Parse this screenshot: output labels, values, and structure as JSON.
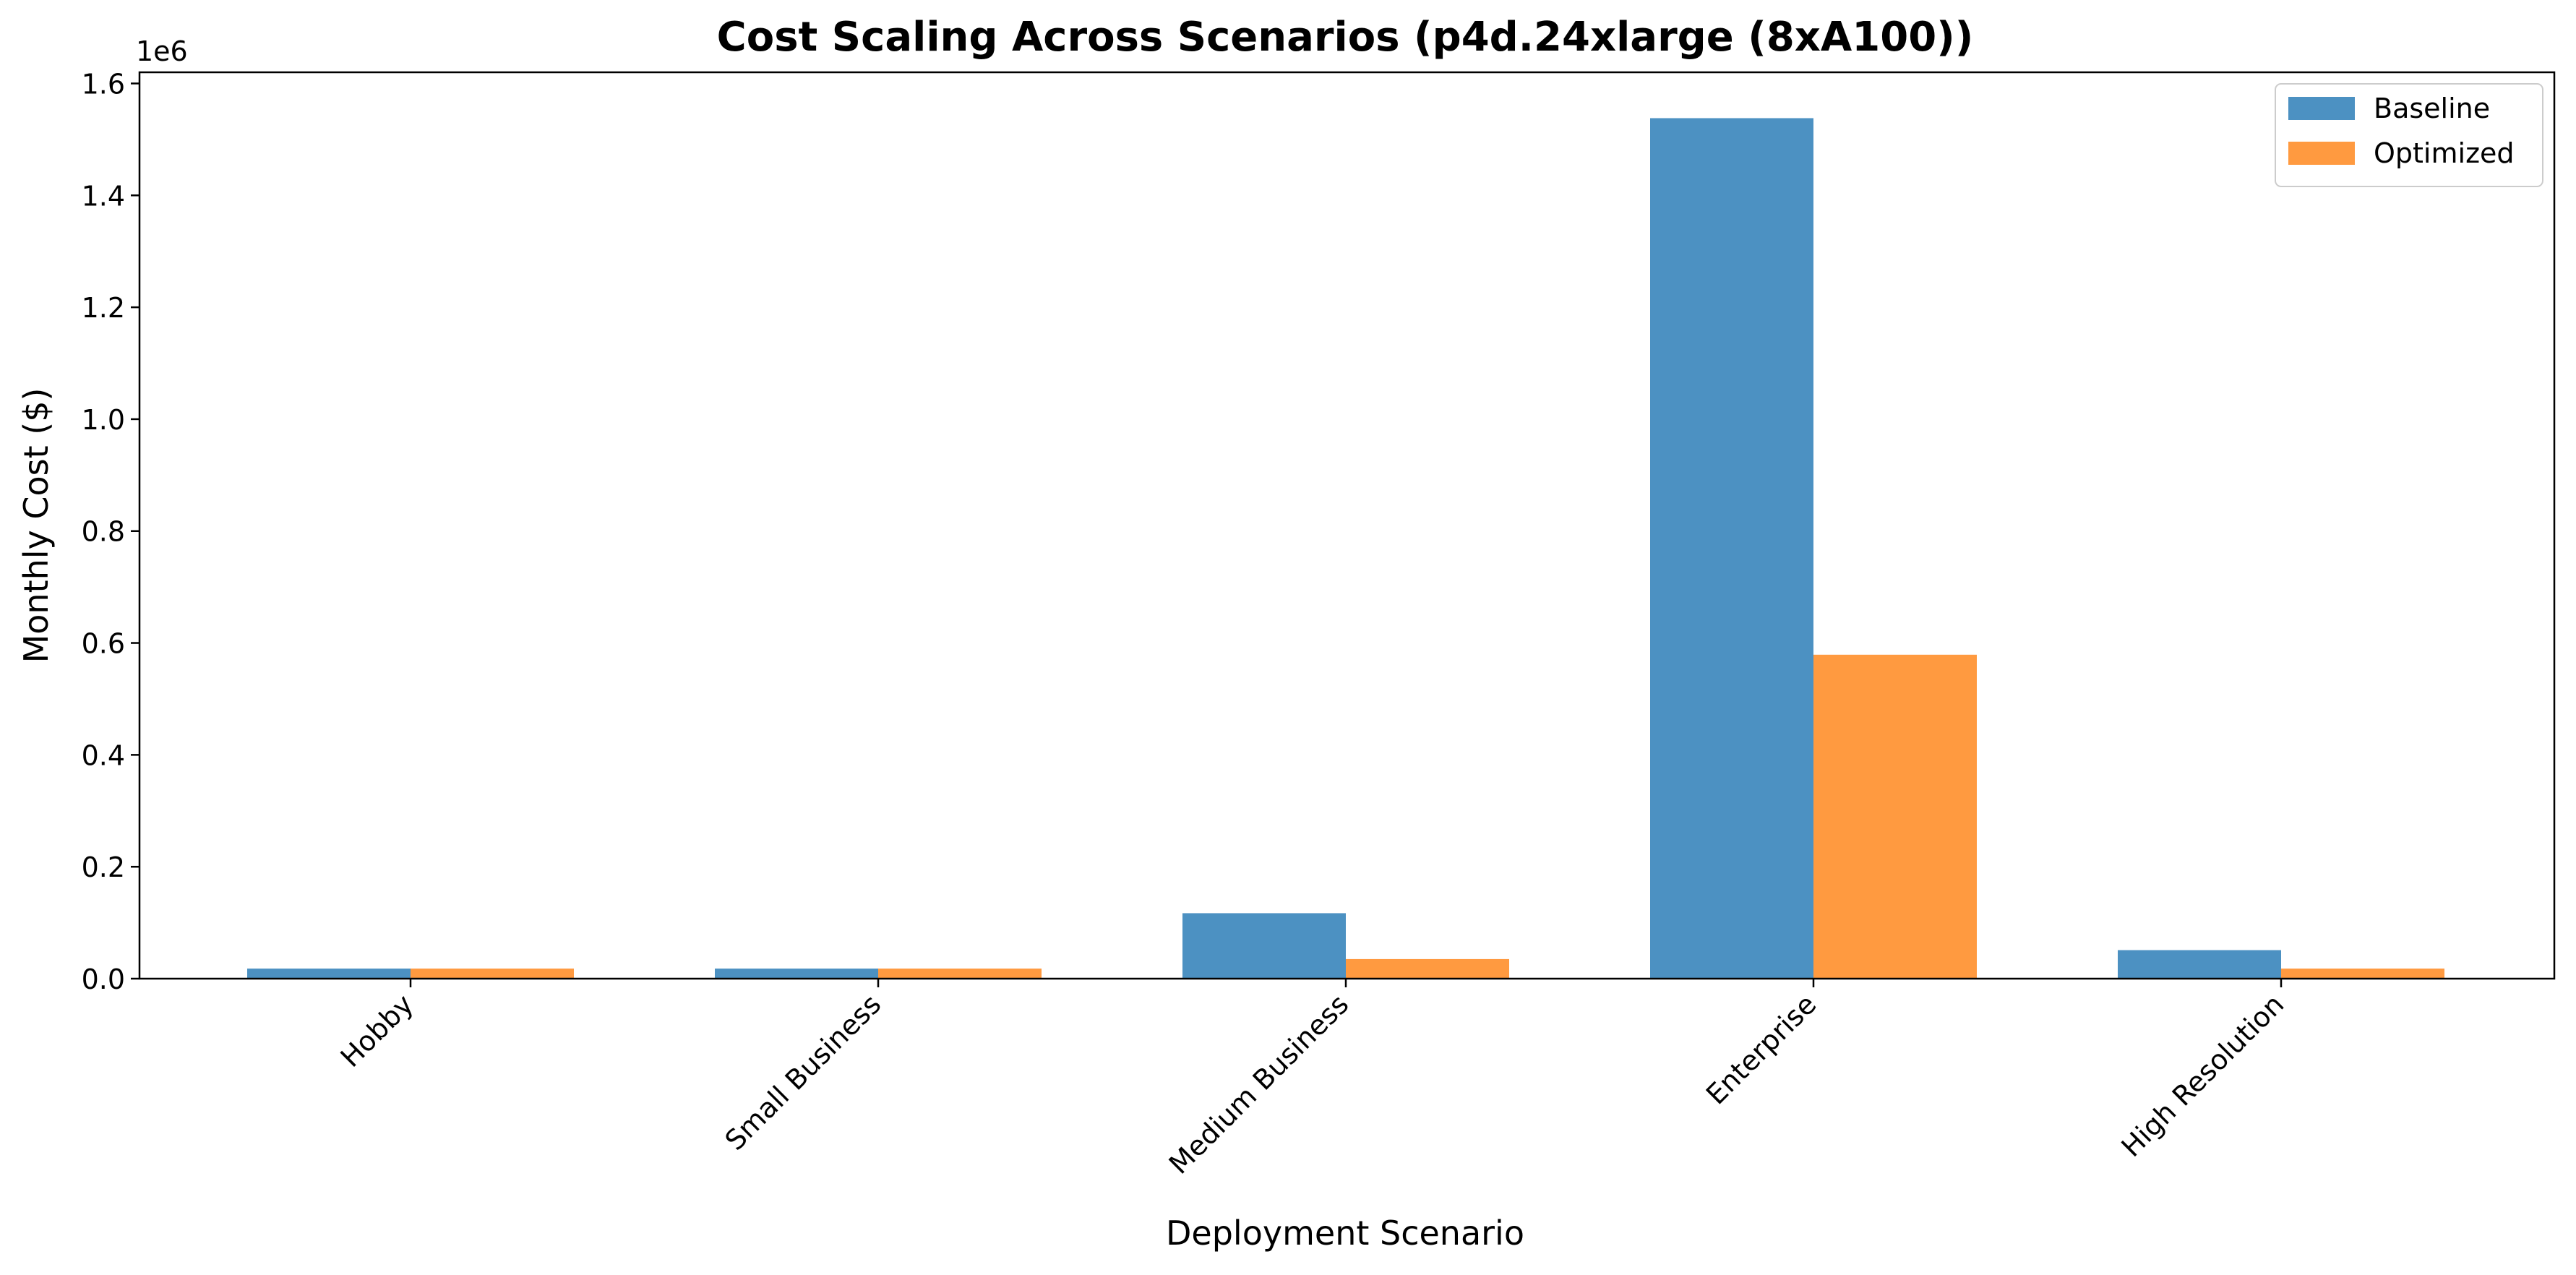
{
  "chart_data": {
    "type": "bar",
    "title": "Cost Scaling Across Scenarios (p4d.24xlarge (8xA100))",
    "xlabel": "Deployment Scenario",
    "ylabel": "Monthly Cost ($)",
    "y_offset_label": "1e6",
    "y_scale": 1000000,
    "ylim": [
      0,
      1.62
    ],
    "yticks": [
      "0.0",
      "0.2",
      "0.4",
      "0.6",
      "0.8",
      "1.0",
      "1.2",
      "1.4",
      "1.6"
    ],
    "categories": [
      "Hobby",
      "Small Business",
      "Medium Business",
      "Enterprise",
      "High Resolution"
    ],
    "series": [
      {
        "name": "Baseline",
        "color": "#4c91c2",
        "values": [
          0.018,
          0.018,
          0.117,
          1.538,
          0.051
        ]
      },
      {
        "name": "Optimized",
        "color": "#ff9a40",
        "values": [
          0.018,
          0.018,
          0.035,
          0.579,
          0.018
        ]
      }
    ],
    "grid": false,
    "legend": "top-right"
  }
}
